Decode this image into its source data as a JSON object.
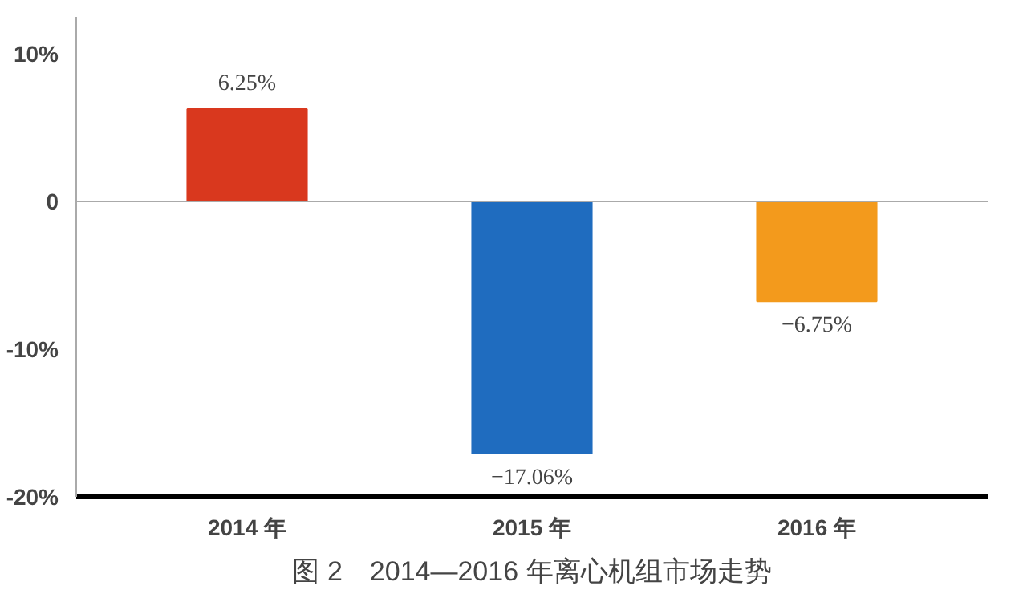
{
  "chart_data": {
    "type": "bar",
    "title": "图 2　2014—2016 年离心机组市场走势",
    "categories": [
      "2014 年",
      "2015 年",
      "2016 年"
    ],
    "values": [
      6.25,
      -17.06,
      -6.75
    ],
    "colors": [
      "#d9381e",
      "#1f6cbf",
      "#f39a1c"
    ],
    "value_labels": [
      "6.25%",
      "−17.06%",
      "−6.75%"
    ],
    "ylim": [
      -20,
      12.5
    ],
    "yticks": [
      {
        "value": 10,
        "label": "10%"
      },
      0,
      {
        "value": -10,
        "label": "-10%"
      },
      {
        "value": -20,
        "label": "-20%"
      }
    ],
    "ref_lines": [
      {
        "axis": "y",
        "value": 0,
        "color": "#aaaaaa"
      }
    ],
    "grid": false
  }
}
